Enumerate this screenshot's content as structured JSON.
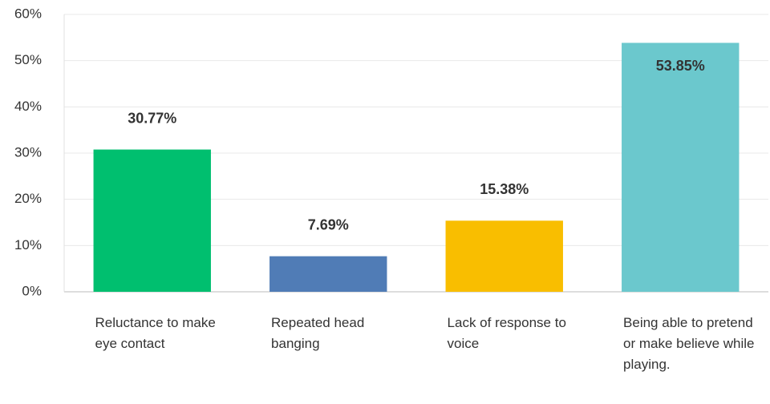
{
  "chart_data": {
    "type": "bar",
    "categories": [
      "Reluctance to make eye contact",
      "Repeated head banging",
      "Lack of response to voice",
      "Being able to pretend or make believe while playing."
    ],
    "values": [
      30.77,
      7.69,
      15.38,
      53.85
    ],
    "value_labels": [
      "30.77%",
      "7.69%",
      "15.38%",
      "53.85%"
    ],
    "colors": [
      "#00bf6f",
      "#507cb6",
      "#f9be00",
      "#6bc8cd"
    ],
    "ylim": [
      0,
      60
    ],
    "yticks": [
      {
        "value": 0,
        "label": "0%"
      },
      {
        "value": 10,
        "label": "10%"
      },
      {
        "value": 20,
        "label": "20%"
      },
      {
        "value": 30,
        "label": "30%"
      },
      {
        "value": 40,
        "label": "40%"
      },
      {
        "value": 50,
        "label": "50%"
      },
      {
        "value": 60,
        "label": "60%"
      }
    ],
    "grid": true
  }
}
